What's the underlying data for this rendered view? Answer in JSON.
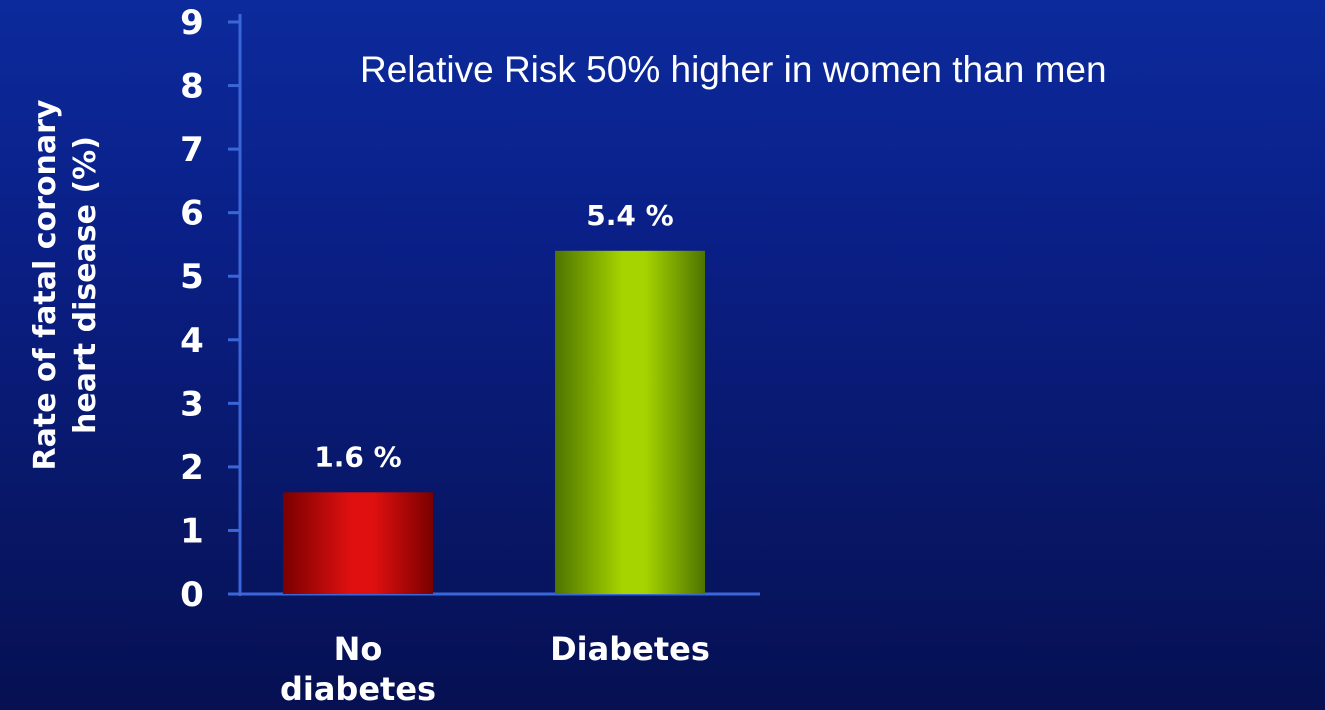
{
  "chart_data": {
    "type": "bar",
    "title": "Relative Risk 50% higher in women than men",
    "ylabel_lines": [
      "Rate of fatal coronary",
      "heart disease (%)"
    ],
    "xlabel": "",
    "categories": [
      {
        "lines": [
          "No",
          "diabetes"
        ]
      },
      {
        "lines": [
          "Diabetes"
        ]
      }
    ],
    "values": [
      1.6,
      5.4
    ],
    "data_labels": [
      "1.6 %",
      "5.4 %"
    ],
    "ylim": [
      0,
      9
    ],
    "yticks": [
      0,
      1,
      2,
      3,
      4,
      5,
      6,
      7,
      8,
      9
    ],
    "grid": false,
    "legend": "none",
    "bar_colors": [
      {
        "light": "#e01010",
        "dark": "#7a0000"
      },
      {
        "light": "#a6d400",
        "dark": "#4e7400"
      }
    ],
    "axis_color": "#3b66d8"
  }
}
